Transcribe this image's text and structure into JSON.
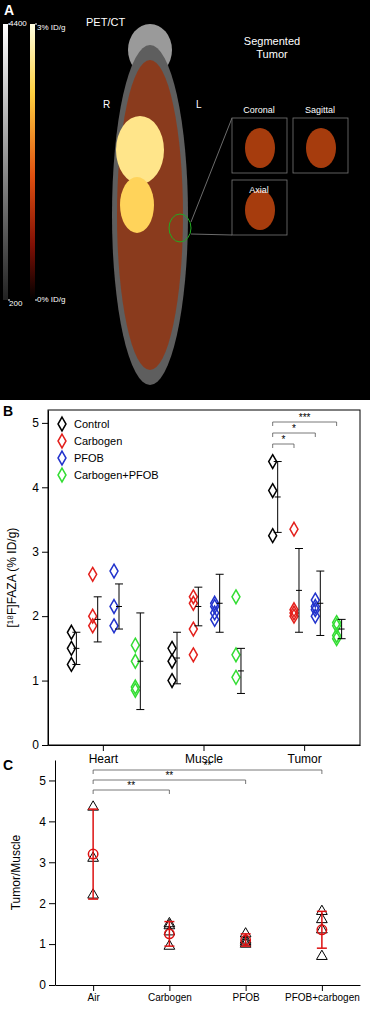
{
  "chart_data": [
    {
      "type": "image",
      "title": "PET/CT",
      "annotations": [
        {
          "text": "A"
        },
        {
          "text": "R"
        },
        {
          "text": "L"
        },
        {
          "text": "Segmented Tumor"
        }
      ],
      "categories": [
        "Coronal",
        "Sagittal",
        "Axial"
      ],
      "colorbars": [
        {
          "range": [
            200,
            4400
          ],
          "ticks": [
            200,
            4400
          ]
        },
        {
          "range": [
            0,
            3
          ],
          "ticks": [
            {
              "value": 3,
              "label": "3% ID/g"
            },
            {
              "value": 0,
              "label": "0% ID/g"
            }
          ]
        }
      ]
    },
    {
      "type": "scatter",
      "ylabel": "[¹⁸F]FAZA (% ID/g)",
      "categories": [
        "Heart",
        "Muscle",
        "Tumor"
      ],
      "ylim": [
        0,
        5.2
      ],
      "yticks": [
        0,
        1,
        2,
        3,
        4,
        5
      ],
      "legend": "upper left",
      "marker": "diamond",
      "annotations": [
        {
          "text": "B"
        },
        {
          "text": "***",
          "category": "Tumor",
          "from": "Control",
          "to": "Carbogen+PFOB"
        },
        {
          "text": "*",
          "category": "Tumor",
          "from": "Control",
          "to": "PFOB"
        },
        {
          "text": "*",
          "category": "Tumor",
          "from": "Control",
          "to": "Carbogen"
        }
      ],
      "series": [
        {
          "name": "Control",
          "color": "#000000",
          "values": [
            1.5,
            1.35,
            3.85
          ],
          "error": [
            0.25,
            0.4,
            0.55
          ],
          "points": [
            [
              1.75,
              1.5,
              1.25
            ],
            [
              1.5,
              1.3,
              1.0
            ],
            [
              4.4,
              3.95,
              3.25
            ]
          ]
        },
        {
          "name": "Carbogen",
          "color": "#e3201c",
          "values": [
            1.95,
            2.15,
            2.4
          ],
          "error": [
            0.35,
            0.3,
            0.65
          ],
          "points": [
            [
              2.65,
              2.0,
              1.85
            ],
            [
              2.3,
              2.2,
              1.8,
              1.4
            ],
            [
              3.35,
              2.1,
              2.05,
              2.0
            ]
          ]
        },
        {
          "name": "PFOB",
          "color": "#2233cc",
          "values": [
            2.15,
            2.2,
            2.2
          ],
          "error": [
            0.35,
            0.45,
            0.5
          ],
          "points": [
            [
              2.7,
              2.15,
              1.85
            ],
            [
              2.2,
              2.15,
              2.05,
              1.95
            ],
            [
              2.25,
              2.15,
              2.1,
              2.0
            ]
          ]
        },
        {
          "name": "Carbogen+PFOB",
          "color": "#33dd33",
          "values": [
            1.3,
            1.15,
            1.8
          ],
          "error": [
            0.75,
            0.35,
            0.15
          ],
          "points": [
            [
              1.55,
              1.3,
              0.9,
              0.85
            ],
            [
              2.3,
              1.4,
              1.05
            ],
            [
              1.9,
              1.85,
              1.7,
              1.65
            ]
          ]
        }
      ]
    },
    {
      "type": "scatter",
      "ylabel": "Tumor/Muscle",
      "categories": [
        "Air",
        "Carbogen",
        "PFOB",
        "PFOB+carbogen"
      ],
      "ylim": [
        0,
        5.5
      ],
      "yticks": [
        0,
        1,
        2,
        3,
        4,
        5
      ],
      "color": "#dd1111",
      "marker": "circle",
      "annotations": [
        {
          "text": "C"
        },
        {
          "text": "**",
          "from": "Air",
          "to": "PFOB+carbogen"
        },
        {
          "text": "**",
          "from": "Air",
          "to": "PFOB"
        },
        {
          "text": "**",
          "from": "Air",
          "to": "Carbogen"
        }
      ],
      "values": [
        3.2,
        1.25,
        1.1,
        1.35
      ],
      "error": [
        1.1,
        0.3,
        0.15,
        0.45
      ],
      "points": [
        [
          4.35,
          3.1,
          2.2
        ],
        [
          1.5,
          1.45,
          1.3,
          0.95
        ],
        [
          1.25,
          1.1,
          1.05,
          1.0
        ],
        [
          1.8,
          1.6,
          1.35,
          0.7
        ]
      ]
    }
  ]
}
